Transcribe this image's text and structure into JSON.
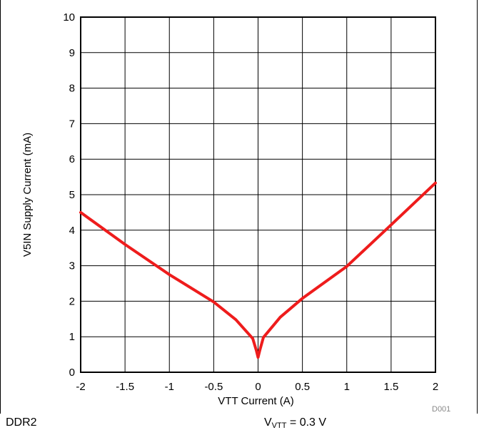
{
  "chart_data": {
    "type": "line",
    "xlabel": "VTT Current (A)",
    "ylabel": "V5IN Supply Current (mA)",
    "xlim": [
      -2,
      2
    ],
    "ylim": [
      0,
      10
    ],
    "x_ticks": [
      -2,
      -1.5,
      -1,
      -0.5,
      0,
      0.5,
      1,
      1.5,
      2
    ],
    "y_ticks": [
      0,
      1,
      2,
      3,
      4,
      5,
      6,
      7,
      8,
      9,
      10
    ],
    "grid": true,
    "line_color": "#ee1c1c",
    "series": [
      {
        "x": [
          -2,
          -1.5,
          -1,
          -0.5,
          -0.25,
          -0.06,
          -0.02,
          0,
          0.02,
          0.06,
          0.25,
          0.5,
          1,
          1.5,
          2
        ],
        "y": [
          4.5,
          3.6,
          2.75,
          1.98,
          1.48,
          0.95,
          0.62,
          0.42,
          0.62,
          0.98,
          1.55,
          2.08,
          2.98,
          4.15,
          5.33
        ]
      }
    ],
    "figure_code": "D001"
  },
  "footer": {
    "left": "DDR2",
    "right_symbol": "V",
    "right_sub": "VTT",
    "right_value": " = 0.3 V"
  }
}
